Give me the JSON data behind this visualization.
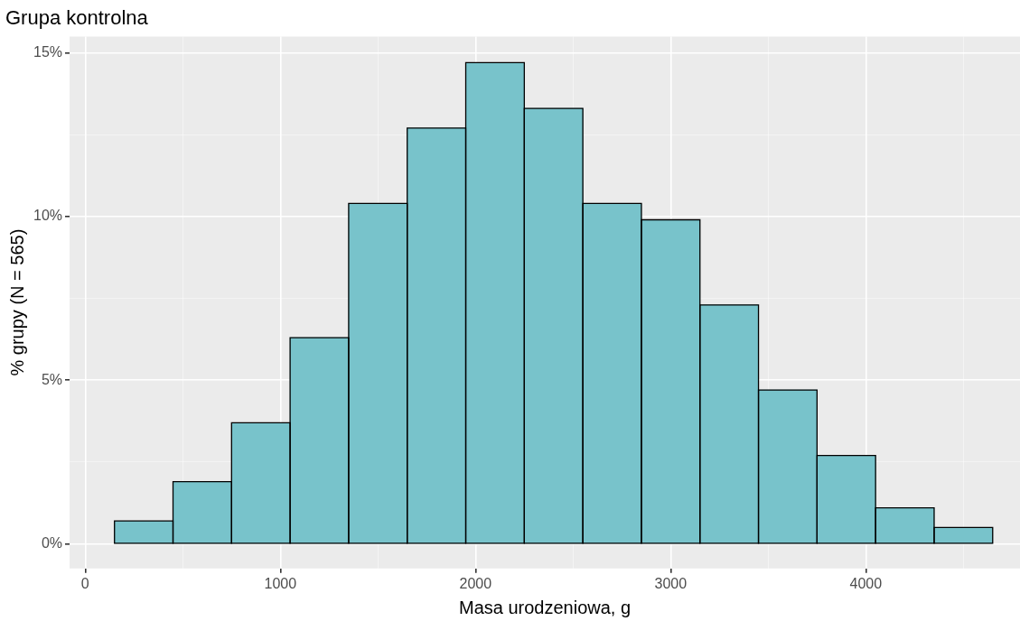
{
  "chart_data": {
    "type": "histogram",
    "title": "Grupa kontrolna",
    "xlabel": "Masa urodzeniowa, g",
    "ylabel": "% grupy (N = 565)",
    "bins": [
      150,
      450,
      750,
      1050,
      1350,
      1650,
      1950,
      2250,
      2550,
      2850,
      3150,
      3450,
      3750,
      4050,
      4350,
      4650
    ],
    "values": [
      0.7,
      1.9,
      3.7,
      6.3,
      10.4,
      12.7,
      14.7,
      13.3,
      10.4,
      9.9,
      7.3,
      4.7,
      2.7,
      1.1,
      0.5
    ],
    "color": "#78c3cb",
    "xlim": [
      -80,
      4790
    ],
    "ylim": [
      -0.75,
      15.5
    ],
    "xticks": [
      0,
      {
        "value": 500,
        "label": null
      },
      1000,
      {
        "value": 1500,
        "label": null
      },
      2000,
      {
        "value": 2500,
        "label": null
      },
      3000,
      {
        "value": 3500,
        "label": null
      },
      4000,
      {
        "value": 4500,
        "label": null
      }
    ],
    "yticks": [
      {
        "value": 0,
        "label": "0%"
      },
      {
        "value": 2.5,
        "label": null
      },
      {
        "value": 5,
        "label": "5%"
      },
      {
        "value": 7.5,
        "label": null
      },
      {
        "value": 10,
        "label": "10%"
      },
      {
        "value": 12.5,
        "label": null
      },
      {
        "value": 15,
        "label": "15%"
      }
    ],
    "grid": true,
    "legend": false
  }
}
